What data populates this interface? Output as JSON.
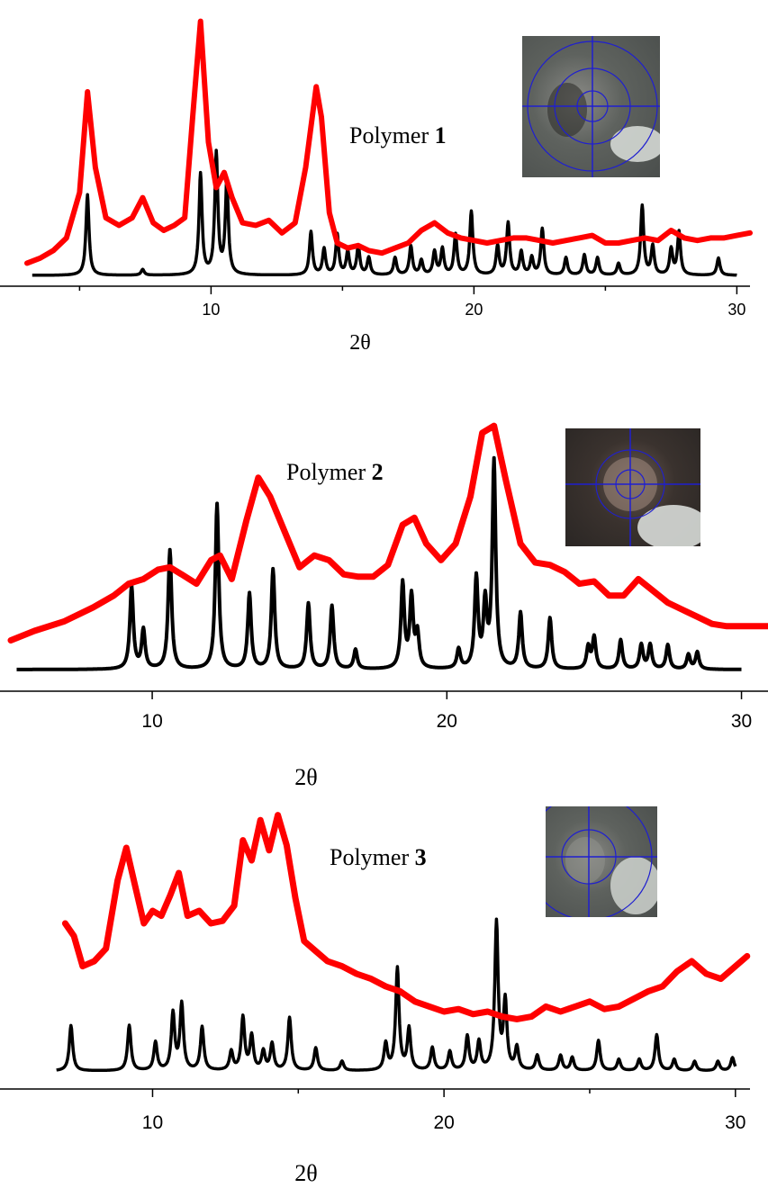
{
  "chart_data": [
    {
      "type": "line",
      "label_prefix": "Polymer ",
      "label_number": "1",
      "xlabel": "2θ",
      "xlim": [
        3,
        30.5
      ],
      "xticks": [
        "10",
        "20",
        "30"
      ],
      "xtick_values": [
        10,
        20,
        30
      ],
      "series": [
        {
          "color": "#ff0000",
          "x": [
            3.0,
            3.5,
            4.0,
            4.5,
            5.0,
            5.3,
            5.6,
            6.0,
            6.5,
            7.0,
            7.4,
            7.8,
            8.2,
            8.6,
            9.0,
            9.3,
            9.6,
            9.9,
            10.2,
            10.5,
            10.8,
            11.2,
            11.7,
            12.2,
            12.7,
            13.2,
            13.6,
            14.0,
            14.2,
            14.5,
            14.8,
            15.2,
            15.6,
            16.0,
            16.5,
            17.0,
            17.5,
            18.0,
            18.5,
            19.0,
            19.5,
            20.0,
            20.5,
            21.0,
            21.5,
            22.0,
            22.5,
            23.0,
            23.5,
            24.0,
            24.5,
            25.0,
            25.5,
            26.0,
            26.5,
            27.0,
            27.5,
            28.0,
            28.5,
            29.0,
            29.5,
            30.0,
            30.5
          ],
          "y": [
            0.02,
            0.04,
            0.07,
            0.12,
            0.3,
            0.7,
            0.4,
            0.2,
            0.17,
            0.2,
            0.28,
            0.18,
            0.15,
            0.17,
            0.2,
            0.6,
            0.98,
            0.5,
            0.32,
            0.38,
            0.28,
            0.18,
            0.17,
            0.19,
            0.14,
            0.18,
            0.4,
            0.72,
            0.6,
            0.22,
            0.1,
            0.08,
            0.09,
            0.07,
            0.06,
            0.08,
            0.1,
            0.15,
            0.18,
            0.14,
            0.12,
            0.11,
            0.1,
            0.11,
            0.12,
            0.12,
            0.11,
            0.1,
            0.11,
            0.12,
            0.13,
            0.1,
            0.1,
            0.11,
            0.12,
            0.11,
            0.15,
            0.12,
            0.11,
            0.12,
            0.12,
            0.13,
            0.14
          ]
        },
        {
          "color": "#000000",
          "peaks": [
            [
              5.3,
              0.28
            ],
            [
              7.4,
              0.02
            ],
            [
              9.6,
              0.35
            ],
            [
              10.2,
              0.42
            ],
            [
              10.6,
              0.32
            ],
            [
              13.8,
              0.15
            ],
            [
              14.3,
              0.09
            ],
            [
              14.8,
              0.14
            ],
            [
              15.2,
              0.08
            ],
            [
              15.6,
              0.1
            ],
            [
              16.0,
              0.06
            ],
            [
              17.0,
              0.06
            ],
            [
              17.6,
              0.1
            ],
            [
              18.0,
              0.05
            ],
            [
              18.5,
              0.08
            ],
            [
              18.8,
              0.09
            ],
            [
              19.3,
              0.14
            ],
            [
              19.9,
              0.22
            ],
            [
              20.9,
              0.1
            ],
            [
              21.3,
              0.18
            ],
            [
              21.8,
              0.08
            ],
            [
              22.2,
              0.06
            ],
            [
              22.6,
              0.16
            ],
            [
              23.5,
              0.06
            ],
            [
              24.2,
              0.07
            ],
            [
              24.7,
              0.06
            ],
            [
              25.5,
              0.04
            ],
            [
              26.4,
              0.24
            ],
            [
              26.8,
              0.1
            ],
            [
              27.5,
              0.09
            ],
            [
              27.8,
              0.15
            ],
            [
              29.3,
              0.06
            ]
          ]
        }
      ]
    },
    {
      "type": "line",
      "label_prefix": "Polymer ",
      "label_number": "2",
      "xlabel": "2θ",
      "xlim": [
        5.2,
        30.9
      ],
      "xticks": [
        "10",
        "20",
        "30"
      ],
      "xtick_values": [
        10,
        20,
        30
      ],
      "series": [
        {
          "color": "#ff0000",
          "x": [
            5.2,
            6.0,
            7.0,
            8.0,
            8.7,
            9.2,
            9.7,
            10.2,
            10.6,
            11.0,
            11.5,
            12.0,
            12.3,
            12.7,
            13.2,
            13.6,
            14.0,
            14.5,
            15.0,
            15.5,
            16.0,
            16.5,
            17.0,
            17.5,
            18.0,
            18.5,
            18.9,
            19.3,
            19.8,
            20.3,
            20.8,
            21.2,
            21.6,
            22.0,
            22.5,
            23.0,
            23.5,
            24.0,
            24.5,
            25.0,
            25.5,
            26.0,
            26.5,
            27.0,
            27.5,
            28.0,
            28.5,
            29.0,
            29.5,
            30.0,
            30.9
          ],
          "y": [
            0.04,
            0.08,
            0.12,
            0.18,
            0.23,
            0.28,
            0.3,
            0.34,
            0.35,
            0.32,
            0.28,
            0.38,
            0.4,
            0.3,
            0.55,
            0.73,
            0.65,
            0.5,
            0.35,
            0.4,
            0.38,
            0.32,
            0.31,
            0.31,
            0.36,
            0.53,
            0.56,
            0.45,
            0.38,
            0.45,
            0.65,
            0.92,
            0.95,
            0.72,
            0.45,
            0.37,
            0.36,
            0.33,
            0.28,
            0.29,
            0.23,
            0.23,
            0.3,
            0.25,
            0.2,
            0.17,
            0.14,
            0.11,
            0.1,
            0.1,
            0.1
          ]
        },
        {
          "color": "#000000",
          "peaks": [
            [
              9.3,
              0.34
            ],
            [
              9.7,
              0.16
            ],
            [
              10.6,
              0.49
            ],
            [
              12.2,
              0.68
            ],
            [
              13.3,
              0.31
            ],
            [
              14.1,
              0.41
            ],
            [
              15.3,
              0.27
            ],
            [
              16.1,
              0.26
            ],
            [
              16.9,
              0.08
            ],
            [
              18.5,
              0.35
            ],
            [
              18.8,
              0.29
            ],
            [
              19.0,
              0.14
            ],
            [
              20.4,
              0.08
            ],
            [
              21.0,
              0.37
            ],
            [
              21.3,
              0.26
            ],
            [
              21.6,
              0.85
            ],
            [
              22.5,
              0.23
            ],
            [
              23.5,
              0.21
            ],
            [
              24.8,
              0.09
            ],
            [
              25.0,
              0.13
            ],
            [
              25.9,
              0.12
            ],
            [
              26.6,
              0.1
            ],
            [
              26.9,
              0.1
            ],
            [
              27.5,
              0.1
            ],
            [
              28.2,
              0.06
            ],
            [
              28.5,
              0.07
            ]
          ]
        }
      ]
    },
    {
      "type": "line",
      "label_prefix": "Polymer ",
      "label_number": "3",
      "xlabel": "2θ",
      "xlim": [
        6,
        30.5
      ],
      "xticks": [
        "10",
        "20",
        "30"
      ],
      "xtick_values": [
        10,
        20,
        30
      ],
      "series": [
        {
          "color": "#ff0000",
          "x": [
            7.0,
            7.3,
            7.6,
            8.0,
            8.4,
            8.8,
            9.1,
            9.4,
            9.7,
            10.0,
            10.3,
            10.6,
            10.9,
            11.2,
            11.6,
            12.0,
            12.4,
            12.8,
            13.1,
            13.4,
            13.7,
            14.0,
            14.3,
            14.6,
            14.9,
            15.2,
            15.6,
            16.0,
            16.5,
            17.0,
            17.5,
            18.0,
            18.5,
            19.0,
            19.5,
            20.0,
            20.5,
            21.0,
            21.5,
            22.0,
            22.5,
            23.0,
            23.5,
            24.0,
            24.5,
            25.0,
            25.5,
            26.0,
            26.5,
            27.0,
            27.5,
            28.0,
            28.5,
            29.0,
            29.5,
            30.0,
            30.4
          ],
          "y": [
            0.55,
            0.5,
            0.38,
            0.4,
            0.45,
            0.72,
            0.85,
            0.7,
            0.55,
            0.6,
            0.58,
            0.66,
            0.75,
            0.58,
            0.6,
            0.55,
            0.56,
            0.62,
            0.88,
            0.8,
            0.96,
            0.84,
            0.98,
            0.86,
            0.65,
            0.48,
            0.44,
            0.4,
            0.38,
            0.35,
            0.33,
            0.3,
            0.28,
            0.24,
            0.22,
            0.2,
            0.21,
            0.19,
            0.2,
            0.18,
            0.17,
            0.18,
            0.22,
            0.2,
            0.22,
            0.24,
            0.21,
            0.22,
            0.25,
            0.28,
            0.3,
            0.36,
            0.4,
            0.35,
            0.33,
            0.38,
            0.42
          ]
        },
        {
          "color": "#000000",
          "peaks": [
            [
              7.2,
              0.24
            ],
            [
              9.2,
              0.24
            ],
            [
              10.1,
              0.15
            ],
            [
              10.7,
              0.3
            ],
            [
              11.0,
              0.35
            ],
            [
              11.7,
              0.23
            ],
            [
              12.7,
              0.1
            ],
            [
              13.1,
              0.28
            ],
            [
              13.4,
              0.18
            ],
            [
              13.8,
              0.1
            ],
            [
              14.1,
              0.14
            ],
            [
              14.7,
              0.28
            ],
            [
              15.6,
              0.12
            ],
            [
              16.5,
              0.05
            ],
            [
              18.0,
              0.14
            ],
            [
              18.4,
              0.54
            ],
            [
              18.8,
              0.22
            ],
            [
              19.6,
              0.12
            ],
            [
              20.2,
              0.1
            ],
            [
              20.8,
              0.18
            ],
            [
              21.2,
              0.15
            ],
            [
              21.8,
              0.78
            ],
            [
              22.1,
              0.36
            ],
            [
              22.5,
              0.12
            ],
            [
              23.2,
              0.08
            ],
            [
              24.0,
              0.08
            ],
            [
              24.4,
              0.07
            ],
            [
              25.3,
              0.16
            ],
            [
              26.0,
              0.06
            ],
            [
              26.7,
              0.06
            ],
            [
              27.3,
              0.19
            ],
            [
              27.9,
              0.06
            ],
            [
              28.6,
              0.05
            ],
            [
              29.4,
              0.05
            ],
            [
              29.9,
              0.07
            ]
          ]
        }
      ]
    }
  ]
}
